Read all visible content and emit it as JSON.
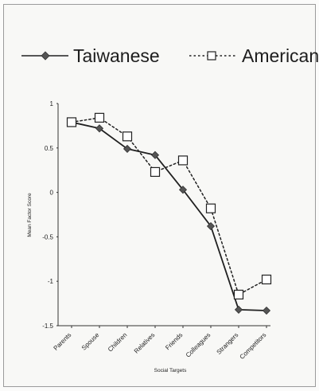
{
  "chart_data": {
    "type": "line",
    "title": "",
    "xlabel": "Social Targets",
    "ylabel": "Mean Factor Score",
    "categories": [
      "Parents",
      "Spouse",
      "Children",
      "Relatives",
      "Friends",
      "Colleagues",
      "Strangers",
      "Competitors"
    ],
    "ylim": [
      -1.5,
      1
    ],
    "yticks": [
      "1",
      "0.5",
      "0",
      "-0.5",
      "-1",
      "-1.5"
    ],
    "grid": false,
    "legend_position": "top",
    "series": [
      {
        "name": "Taiwanese",
        "values": [
          0.79,
          0.72,
          0.49,
          0.42,
          0.03,
          -0.38,
          -1.32,
          -1.33
        ],
        "style": "solid",
        "marker": "diamond",
        "color": "#202020"
      },
      {
        "name": "American",
        "values": [
          0.79,
          0.84,
          0.63,
          0.23,
          0.36,
          -0.18,
          -1.15,
          -0.98
        ],
        "style": "dotted",
        "marker": "square",
        "color": "#202020"
      }
    ]
  }
}
